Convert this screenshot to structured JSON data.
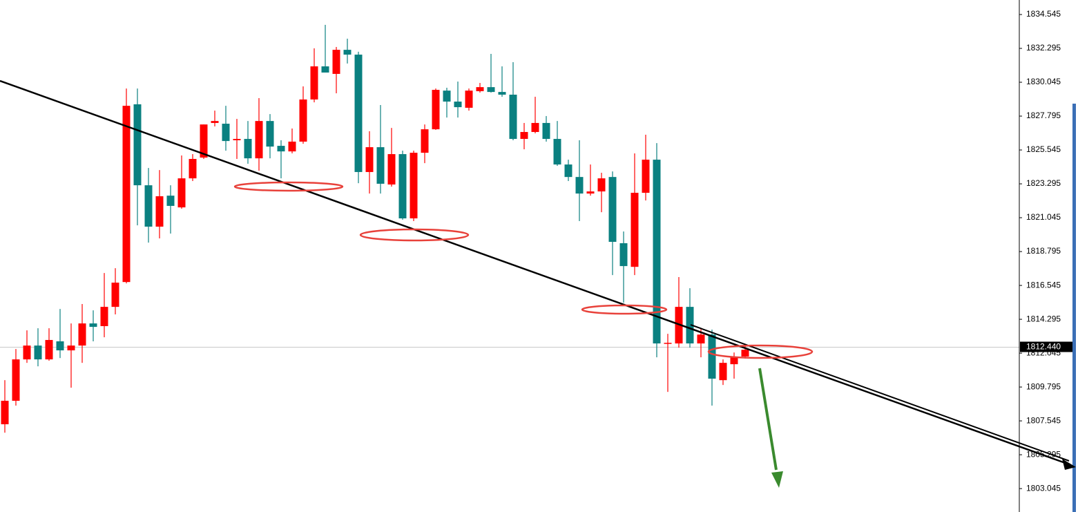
{
  "chart_data": {
    "type": "candlestick",
    "up_color": "#ff0000",
    "down_color": "#0a8080",
    "open": [
      1807.32,
      1808.88,
      1811.63,
      1812.55,
      1811.63,
      1812.83,
      1812.23,
      1812.55,
      1814.02,
      1813.84,
      1815.12,
      1816.77,
      1828.58,
      1823.2,
      1820.45,
      1822.51,
      1821.73,
      1823.66,
      1825.04,
      1827.34,
      1827.29,
      1826.19,
      1826.28,
      1824.99,
      1827.47,
      1825.82,
      1825.45,
      1826.1,
      1828.9,
      1831.1,
      1830.6,
      1832.2,
      1831.88,
      1824.08,
      1825.73,
      1823.25,
      1825.27,
      1821.0,
      1825.36,
      1826.92,
      1829.49,
      1828.76,
      1828.35,
      1829.45,
      1829.72,
      1829.4,
      1829.22,
      1826.28,
      1826.74,
      1827.34,
      1826.28,
      1824.58,
      1823.75,
      1822.65,
      1822.79,
      1823.75,
      1819.35,
      1817.78,
      1822.7,
      1824.9,
      1812.69,
      1812.69,
      1815.12,
      1812.69,
      1813.28,
      1810.25,
      1811.31,
      1811.82
    ],
    "high": [
      1810.25,
      1812.32,
      1813.56,
      1813.7,
      1813.7,
      1814.98,
      1814.02,
      1815.31,
      1814.89,
      1817.37,
      1817.69,
      1829.63,
      1829.63,
      1824.35,
      1824.21,
      1823.2,
      1825.18,
      1825.27,
      1827.24,
      1828.16,
      1828.48,
      1827.61,
      1827.47,
      1828.99,
      1827.93,
      1826.19,
      1826.97,
      1829.77,
      1832.3,
      1833.86,
      1832.39,
      1832.94,
      1832.07,
      1826.79,
      1828.53,
      1827.01,
      1825.5,
      1825.5,
      1827.24,
      1829.63,
      1829.68,
      1830.09,
      1829.63,
      1830.0,
      1831.93,
      1831.1,
      1831.38,
      1827.34,
      1829.08,
      1827.8,
      1827.47,
      1824.9,
      1826.19,
      1824.58,
      1824.03,
      1824.12,
      1820.13,
      1825.32,
      1826.56,
      1826.0,
      1813.33,
      1817.1,
      1816.36,
      1813.65,
      1813.61,
      1811.63,
      1812.09,
      1812.55
    ],
    "low": [
      1806.76,
      1808.56,
      1811.4,
      1811.17,
      1811.54,
      1811.72,
      1809.75,
      1811.4,
      1812.83,
      1813.1,
      1814.62,
      1816.68,
      1820.54,
      1819.39,
      1819.67,
      1819.99,
      1821.64,
      1823.48,
      1824.95,
      1827.11,
      1825.5,
      1824.95,
      1824.63,
      1824.17,
      1824.99,
      1823.66,
      1825.32,
      1825.96,
      1828.71,
      1830.69,
      1829.31,
      1831.29,
      1823.34,
      1822.65,
      1822.65,
      1823.11,
      1820.91,
      1820.82,
      1824.67,
      1826.88,
      1827.7,
      1827.7,
      1828.16,
      1829.36,
      1829.36,
      1829.08,
      1826.19,
      1825.59,
      1826.65,
      1826.1,
      1824.49,
      1823.48,
      1820.82,
      1822.51,
      1821.41,
      1817.23,
      1815.4,
      1817.23,
      1822.19,
      1811.77,
      1809.47,
      1812.41,
      1812.41,
      1811.77,
      1808.56,
      1809.93,
      1810.35,
      1811.68
    ],
    "close": [
      1808.88,
      1811.63,
      1812.55,
      1811.63,
      1812.92,
      1812.23,
      1812.55,
      1814.02,
      1813.79,
      1815.12,
      1816.73,
      1828.48,
      1823.2,
      1820.45,
      1822.47,
      1821.83,
      1823.66,
      1824.95,
      1827.24,
      1827.47,
      1826.14,
      1826.28,
      1824.99,
      1827.47,
      1825.77,
      1825.45,
      1826.1,
      1828.9,
      1831.1,
      1830.69,
      1832.2,
      1831.88,
      1824.08,
      1825.73,
      1823.3,
      1825.27,
      1821.0,
      1825.36,
      1826.92,
      1829.54,
      1828.76,
      1828.39,
      1829.49,
      1829.72,
      1829.4,
      1829.22,
      1826.28,
      1826.74,
      1827.34,
      1826.28,
      1824.58,
      1823.75,
      1822.65,
      1822.79,
      1823.66,
      1819.44,
      1817.83,
      1822.7,
      1824.9,
      1812.69,
      1812.73,
      1815.12,
      1812.69,
      1813.28,
      1810.35,
      1811.4,
      1811.77,
      1812.27
    ],
    "ylim": [
      1801.49,
      1835.51
    ],
    "yticks": [
      1834.545,
      1832.295,
      1830.045,
      1827.795,
      1825.545,
      1823.295,
      1821.045,
      1818.795,
      1816.545,
      1814.295,
      1812.045,
      1809.795,
      1807.545,
      1805.295,
      1803.045
    ],
    "current_price": {
      "value": 1812.44,
      "label": "1812.440"
    },
    "current_price_line_color": "#c8c8c8"
  }
}
